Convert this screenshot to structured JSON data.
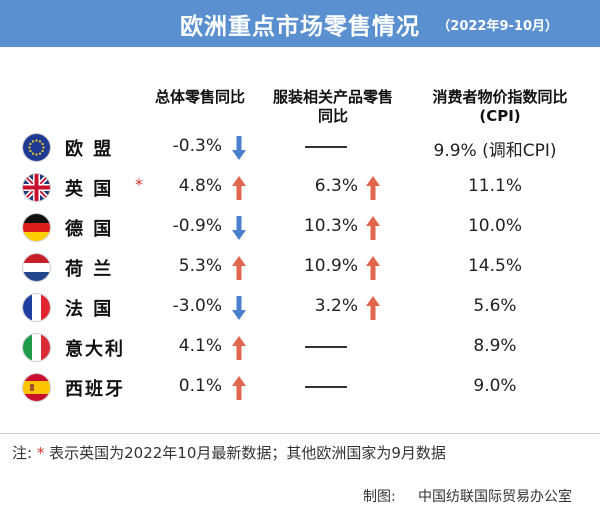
{
  "header": {
    "title": "欧洲重点市场零售情况",
    "period": "（2022年9-10月）"
  },
  "columns": {
    "total_retail": "总体零售同比",
    "apparel_line1": "服装相关产品零售",
    "apparel_line2": "同比",
    "cpi_line1": "消费者物价指数同比",
    "cpi_line2": "(CPI)"
  },
  "rows": [
    {
      "country": "欧 盟",
      "flag": "eu-flag-icon",
      "total": "-0.3%",
      "total_dir": "down",
      "apparel": "",
      "apparel_dir": "none",
      "cpi": "9.9% (调和CPI)"
    },
    {
      "country": "英 国",
      "flag": "uk-flag-icon",
      "star": "*",
      "total": "4.8%",
      "total_dir": "up",
      "apparel": "6.3%",
      "apparel_dir": "up",
      "cpi": "11.1%"
    },
    {
      "country": "德 国",
      "flag": "germany-flag-icon",
      "total": "-0.9%",
      "total_dir": "down",
      "apparel": "10.3%",
      "apparel_dir": "up",
      "cpi": "10.0%"
    },
    {
      "country": "荷 兰",
      "flag": "netherlands-flag-icon",
      "total": "5.3%",
      "total_dir": "up",
      "apparel": "10.9%",
      "apparel_dir": "up",
      "cpi": "14.5%"
    },
    {
      "country": "法 国",
      "flag": "france-flag-icon",
      "total": "-3.0%",
      "total_dir": "down",
      "apparel": "3.2%",
      "apparel_dir": "up",
      "cpi": "5.6%"
    },
    {
      "country": "意大利",
      "flag": "italy-flag-icon",
      "total": "4.1%",
      "total_dir": "up",
      "apparel": "",
      "apparel_dir": "none",
      "cpi": "8.9%"
    },
    {
      "country": "西班牙",
      "flag": "spain-flag-icon",
      "total": "0.1%",
      "total_dir": "up",
      "apparel": "",
      "apparel_dir": "none",
      "cpi": "9.0%"
    }
  ],
  "note": {
    "prefix": "注:",
    "mark": "*",
    "text": "表示英国为2022年10月最新数据；其他欧洲国家为9月数据"
  },
  "credit": {
    "label": "制图:",
    "org": "中国纺联国际贸易办公室"
  },
  "colors": {
    "header_bg": "#5a8fd0",
    "up_arrow": "#e0664d",
    "down_arrow": "#4a7fd0",
    "star": "#d9332a"
  }
}
